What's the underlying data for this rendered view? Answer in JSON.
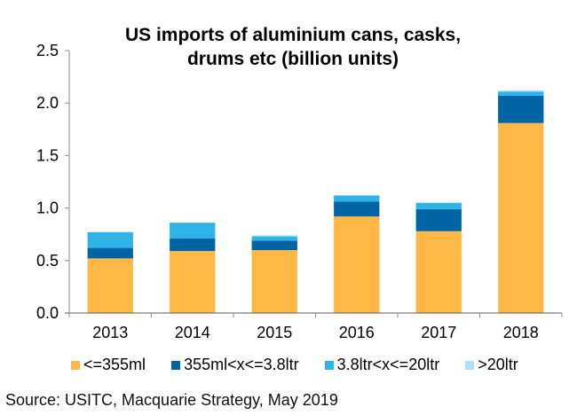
{
  "chart_data": {
    "type": "bar",
    "stacked": true,
    "title": "US imports of aluminium cans, casks, drums etc (billion units)",
    "title_lines": [
      "US imports of aluminium cans, casks,",
      "drums etc (billion units)"
    ],
    "xlabel": "",
    "ylabel": "",
    "categories": [
      "2013",
      "2014",
      "2015",
      "2016",
      "2017",
      "2018"
    ],
    "ylim": [
      0,
      2.5
    ],
    "yticks": [
      0.0,
      0.5,
      1.0,
      1.5,
      2.0,
      2.5
    ],
    "ytick_labels": [
      "0.0",
      "0.5",
      "1.0",
      "1.5",
      "2.0",
      "2.5"
    ],
    "grid": false,
    "legend_position": "bottom",
    "series": [
      {
        "name": "<=355ml",
        "color": "#FFB845",
        "values": [
          0.52,
          0.59,
          0.6,
          0.92,
          0.78,
          1.81
        ]
      },
      {
        "name": "355ml<x<=3.8ltr",
        "color": "#0064A5",
        "values": [
          0.1,
          0.12,
          0.09,
          0.14,
          0.21,
          0.26
        ]
      },
      {
        "name": "3.8ltr<x<=20ltr",
        "color": "#2EB3E6",
        "values": [
          0.15,
          0.15,
          0.04,
          0.06,
          0.06,
          0.04
        ]
      },
      {
        "name": ">20ltr",
        "color": "#A9E3F8",
        "values": [
          0.0,
          0.0,
          0.01,
          0.0,
          0.0,
          0.01
        ]
      }
    ]
  },
  "source": "Source: USITC, Macquarie Strategy, May 2019"
}
